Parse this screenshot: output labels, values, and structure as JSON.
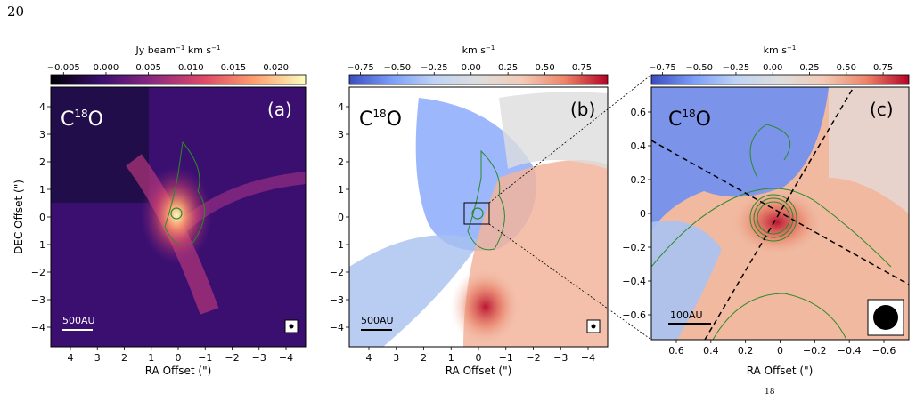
{
  "page": {
    "number": "20",
    "footer_fragment": "18"
  },
  "panels": [
    {
      "id": "a",
      "label": "(a)",
      "molecule": "C",
      "isotope": "18",
      "molecule_suffix": "O",
      "cbar_label_main": "Jy beam",
      "cbar_label_exp": "−1",
      "cbar_label_rest": " km s",
      "cbar_label_exp2": "−1",
      "cbar_ticks": [
        "−0.005",
        "0.000",
        "0.005",
        "0.010",
        "0.015",
        "0.020"
      ],
      "cbar_colors": [
        "#000004",
        "#3b0f70",
        "#8c2981",
        "#de4968",
        "#fe9f6d",
        "#fcfdbf"
      ],
      "ylabel": "DEC Offset (\")",
      "xlabel": "RA Offset (\")",
      "xticks": [
        "4",
        "3",
        "2",
        "1",
        "0",
        "−1",
        "−2",
        "−3",
        "−4"
      ],
      "yticks": [
        "4",
        "3",
        "2",
        "1",
        "0",
        "−1",
        "−2",
        "−3",
        "−4"
      ],
      "scalebar": "500AU"
    },
    {
      "id": "b",
      "label": "(b)",
      "molecule": "C",
      "isotope": "18",
      "molecule_suffix": "O",
      "cbar_label_main": "km s",
      "cbar_label_exp": "−1",
      "cbar_ticks": [
        "−0.75",
        "−0.50",
        "−0.25",
        "0.00",
        "0.25",
        "0.50",
        "0.75"
      ],
      "cbar_colors": [
        "#3b4cc0",
        "#7b9ff9",
        "#c0d4f5",
        "#dddddd",
        "#f2cbb7",
        "#ee8468",
        "#b40426"
      ],
      "xlabel": "RA Offset (\")",
      "xticks": [
        "4",
        "3",
        "2",
        "1",
        "0",
        "−1",
        "−2",
        "−3",
        "−4"
      ],
      "yticks": [
        "4",
        "3",
        "2",
        "1",
        "0",
        "−1",
        "−2",
        "−3",
        "−4"
      ],
      "scalebar": "500AU"
    },
    {
      "id": "c",
      "label": "(c)",
      "molecule": "C",
      "isotope": "18",
      "molecule_suffix": "O",
      "cbar_label_main": "km s",
      "cbar_label_exp": "−1",
      "cbar_ticks": [
        "−0.75",
        "−0.50",
        "−0.25",
        "0.00",
        "0.25",
        "0.50",
        "0.75"
      ],
      "xlabel": "RA Offset (\")",
      "xticks": [
        "0.6",
        "0.4",
        "0.2",
        "0",
        "−0.2",
        "−0.4",
        "−0.6"
      ],
      "yticks": [
        "0.6",
        "0.4",
        "0.2",
        "0",
        "−0.2",
        "−0.4",
        "−0.6"
      ],
      "scalebar": "100AU"
    }
  ]
}
